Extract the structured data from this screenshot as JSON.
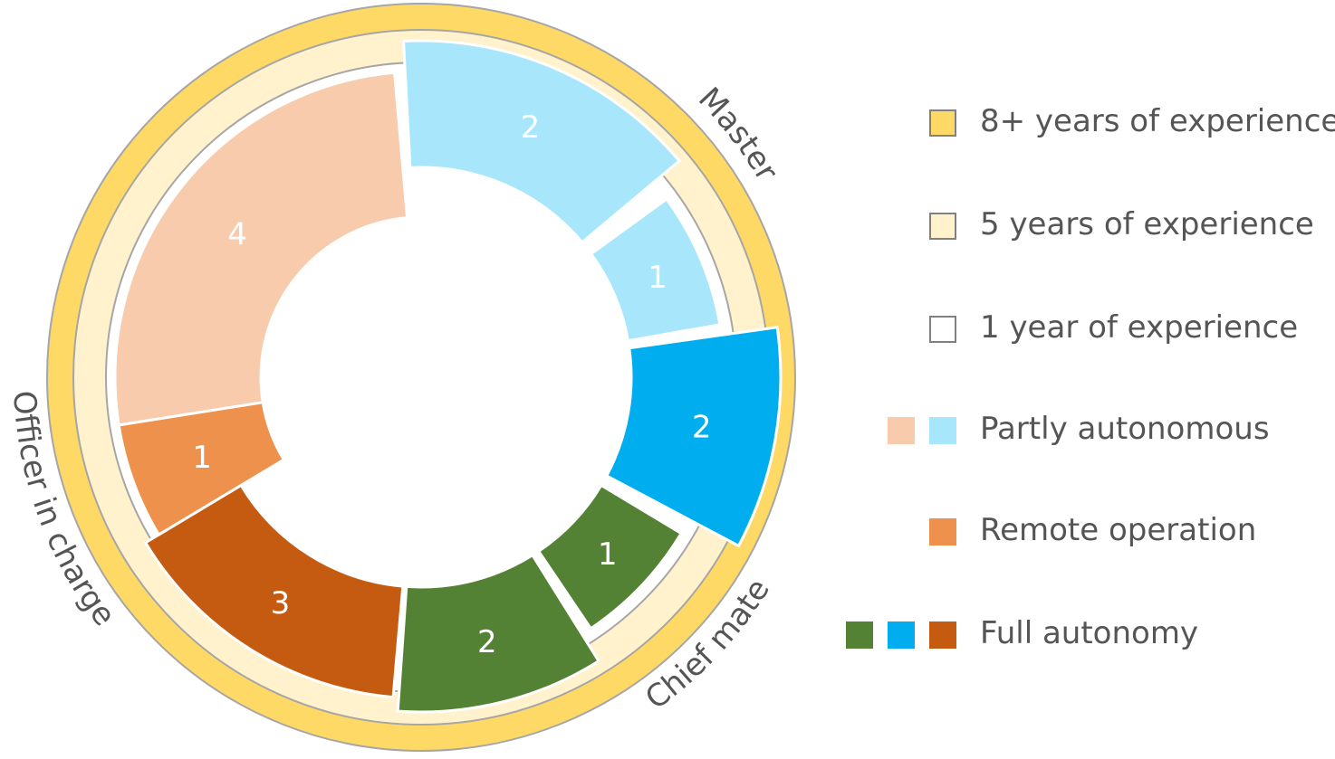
{
  "chart_data": {
    "type": "pie",
    "subtype": "sunburst-donut",
    "roles": [
      {
        "label": "Master",
        "experience": "8+ years of experience"
      },
      {
        "label": "Chief mate",
        "experience": "5 years of experience"
      },
      {
        "label": "Officer in charge",
        "experience": "1 year of experience"
      }
    ],
    "segments": [
      {
        "role": "Master",
        "category": "Partly autonomous",
        "value": 2,
        "color": "#A8E6FB"
      },
      {
        "role": "Master",
        "category": "Partly autonomous",
        "value": 1,
        "color": "#A8E6FB"
      },
      {
        "role": "Master",
        "category": "Full autonomy",
        "value": 2,
        "color": "#00AEEF"
      },
      {
        "role": "Chief mate",
        "category": "Full autonomy",
        "value": 1,
        "color": "#548235"
      },
      {
        "role": "Chief mate",
        "category": "Full autonomy",
        "value": 2,
        "color": "#548235"
      },
      {
        "role": "Officer in charge",
        "category": "Full autonomy",
        "value": 3,
        "color": "#C55A11"
      },
      {
        "role": "Officer in charge",
        "category": "Remote operation",
        "value": 1,
        "color": "#EE914D"
      },
      {
        "role": "Officer in charge",
        "category": "Partly autonomous",
        "value": 4,
        "color": "#F7CBAC"
      }
    ],
    "legend": [
      {
        "label": "8+ years of experience",
        "swatches": [
          "#FFD966"
        ]
      },
      {
        "label": "5 years of experience",
        "swatches": [
          "#FFF2CC"
        ]
      },
      {
        "label": "1 year of experience",
        "swatches": [
          "#FFFFFF"
        ]
      },
      {
        "label": "Partly autonomous",
        "swatches": [
          "#F7CBAC",
          "#A8E6FB"
        ]
      },
      {
        "label": "Remote operation",
        "swatches": [
          "#EE914D"
        ]
      },
      {
        "label": "Full autonomy",
        "swatches": [
          "#548235",
          "#00AEEF",
          "#C55A11"
        ]
      }
    ],
    "legend_position": "right"
  },
  "colors": {
    "ring_8_years": "#FFD966",
    "ring_5_years": "#FFF2CC",
    "ring_1_year": "#FFFFFF",
    "ring_stroke": "#A6A6A6",
    "label_text": "#555555",
    "value_text": "#FFFFFF"
  }
}
